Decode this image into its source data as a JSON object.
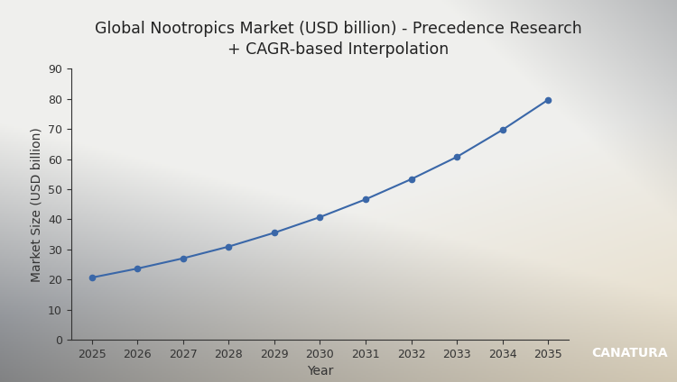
{
  "chart_data": {
    "type": "line",
    "title": "Global Nootropics Market (USD billion) - Precedence Research\n+ CAGR-based Interpolation",
    "x_label": "Year",
    "y_label": "Market Size (USD billion)",
    "x": [
      2025,
      2026,
      2027,
      2028,
      2029,
      2030,
      2031,
      2032,
      2033,
      2034,
      2035
    ],
    "values": [
      20.6,
      23.6,
      27.0,
      30.9,
      35.5,
      40.7,
      46.6,
      53.3,
      60.7,
      69.7,
      79.7
    ],
    "color": "#3a67a8",
    "marker": "circle",
    "line_style": "solid",
    "xlim": [
      2024.55,
      2035.45
    ],
    "xticks": [
      2025,
      2026,
      2027,
      2028,
      2029,
      2030,
      2031,
      2032,
      2033,
      2034,
      2035
    ],
    "ylim": [
      0,
      90
    ],
    "yticks": [
      0,
      10,
      20,
      30,
      40,
      50,
      60,
      70,
      80,
      90
    ],
    "grid": false,
    "annotations": [
      {
        "text": "CANATURA"
      }
    ]
  }
}
